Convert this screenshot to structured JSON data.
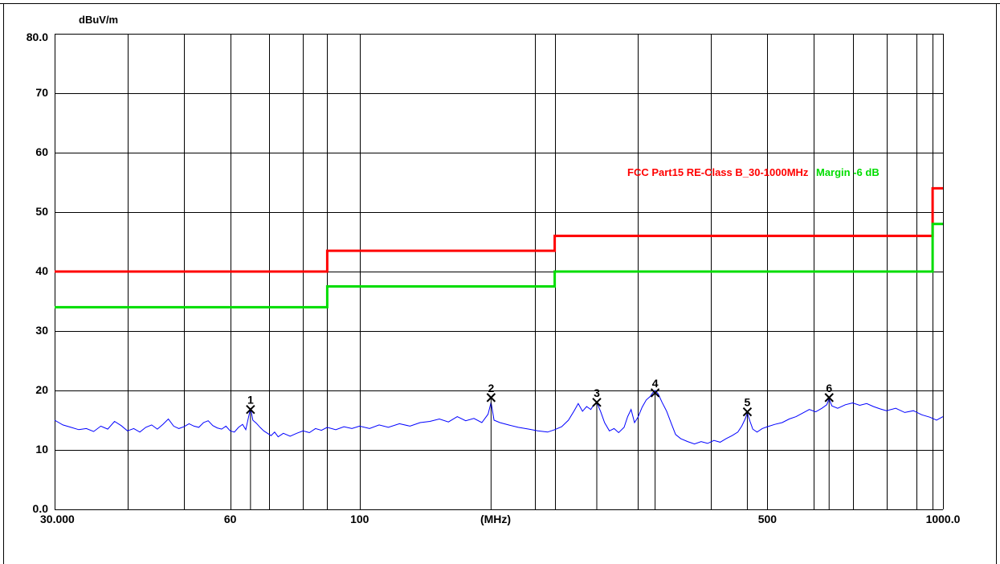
{
  "chart_data": {
    "type": "line",
    "ylabel": "dBuV/m",
    "xlabel": "(MHz)",
    "x_scale": "log",
    "xlim": [
      30,
      1000
    ],
    "ylim": [
      0,
      80
    ],
    "grid": true,
    "y_ticks": [
      {
        "value": 80,
        "label": "80.0"
      },
      {
        "value": 70,
        "label": "70"
      },
      {
        "value": 60,
        "label": "60"
      },
      {
        "value": 50,
        "label": "50"
      },
      {
        "value": 40,
        "label": "40"
      },
      {
        "value": 30,
        "label": "30"
      },
      {
        "value": 20,
        "label": "20"
      },
      {
        "value": 10,
        "label": "10"
      },
      {
        "value": 0,
        "label": "0.0"
      }
    ],
    "x_ticks": [
      {
        "value": 30,
        "label": "30.000"
      },
      {
        "value": 60,
        "label": "60"
      },
      {
        "value": 100,
        "label": "100"
      },
      {
        "value": 500,
        "label": "500"
      },
      {
        "value": 1000,
        "label": "1000.0"
      }
    ],
    "x_gridlines": [
      40,
      50,
      60,
      70,
      80,
      88,
      100,
      200,
      216,
      300,
      400,
      500,
      600,
      700,
      800,
      900,
      960,
      1000
    ],
    "legend": [
      {
        "text": "FCC Part15 RE-Class B_30-1000MHz",
        "color": "#ff0000"
      },
      {
        "text": "Margin -6 dB",
        "color": "#00dd00"
      }
    ],
    "series": [
      {
        "color": "#ff0000",
        "step": true,
        "points": [
          [
            30,
            40
          ],
          [
            88,
            40
          ],
          [
            88,
            43.5
          ],
          [
            216,
            43.5
          ],
          [
            216,
            46
          ],
          [
            960,
            46
          ],
          [
            960,
            54
          ],
          [
            1000,
            54
          ]
        ]
      },
      {
        "color": "#00dd00",
        "step": true,
        "points": [
          [
            30,
            34
          ],
          [
            88,
            34
          ],
          [
            88,
            37.5
          ],
          [
            216,
            37.5
          ],
          [
            216,
            40
          ],
          [
            960,
            40
          ],
          [
            960,
            48
          ],
          [
            1000,
            48
          ]
        ]
      },
      {
        "color": "#0000ff",
        "points": [
          [
            30,
            15.0
          ],
          [
            31,
            14.2
          ],
          [
            32,
            13.8
          ],
          [
            33,
            13.4
          ],
          [
            34,
            13.6
          ],
          [
            35,
            13.1
          ],
          [
            36,
            14.0
          ],
          [
            37,
            13.5
          ],
          [
            38,
            14.8
          ],
          [
            39,
            14.1
          ],
          [
            40,
            13.2
          ],
          [
            41,
            13.6
          ],
          [
            42,
            13.0
          ],
          [
            43,
            13.8
          ],
          [
            44,
            14.2
          ],
          [
            45,
            13.5
          ],
          [
            46,
            14.3
          ],
          [
            47,
            15.2
          ],
          [
            48,
            14.0
          ],
          [
            49,
            13.6
          ],
          [
            50,
            13.9
          ],
          [
            51,
            14.4
          ],
          [
            52,
            14.0
          ],
          [
            53,
            13.8
          ],
          [
            54,
            14.6
          ],
          [
            55,
            14.9
          ],
          [
            56,
            14.1
          ],
          [
            57,
            13.7
          ],
          [
            58,
            13.5
          ],
          [
            59,
            14.0
          ],
          [
            60,
            13.2
          ],
          [
            61,
            13.0
          ],
          [
            62,
            13.8
          ],
          [
            63,
            14.3
          ],
          [
            63.8,
            13.4
          ],
          [
            64.5,
            15.5
          ],
          [
            65,
            17.0
          ],
          [
            65.6,
            15.0
          ],
          [
            66.5,
            14.5
          ],
          [
            67.5,
            13.8
          ],
          [
            68.5,
            13.2
          ],
          [
            69.5,
            12.8
          ],
          [
            70.5,
            12.4
          ],
          [
            71.5,
            13.0
          ],
          [
            72.5,
            12.2
          ],
          [
            74,
            12.8
          ],
          [
            76,
            12.3
          ],
          [
            78,
            12.8
          ],
          [
            80,
            13.2
          ],
          [
            82,
            12.9
          ],
          [
            84,
            13.6
          ],
          [
            86,
            13.3
          ],
          [
            88,
            13.8
          ],
          [
            91,
            13.4
          ],
          [
            94,
            13.9
          ],
          [
            97,
            13.6
          ],
          [
            100,
            14.0
          ],
          [
            104,
            13.6
          ],
          [
            108,
            14.2
          ],
          [
            112,
            13.8
          ],
          [
            117,
            14.4
          ],
          [
            122,
            14.0
          ],
          [
            127,
            14.6
          ],
          [
            132,
            14.8
          ],
          [
            137,
            15.2
          ],
          [
            142,
            14.7
          ],
          [
            147,
            15.6
          ],
          [
            152,
            14.9
          ],
          [
            157,
            15.3
          ],
          [
            162,
            14.6
          ],
          [
            166,
            16.0
          ],
          [
            168,
            18.0
          ],
          [
            170,
            15.0
          ],
          [
            174,
            14.6
          ],
          [
            180,
            14.2
          ],
          [
            187,
            13.8
          ],
          [
            195,
            13.5
          ],
          [
            202,
            13.2
          ],
          [
            210,
            13.0
          ],
          [
            216,
            13.4
          ],
          [
            222,
            13.9
          ],
          [
            228,
            15.0
          ],
          [
            233,
            16.5
          ],
          [
            237,
            17.8
          ],
          [
            241,
            16.5
          ],
          [
            245,
            17.3
          ],
          [
            249,
            16.8
          ],
          [
            252,
            17.6
          ],
          [
            255,
            18.0
          ],
          [
            259,
            16.4
          ],
          [
            263,
            14.6
          ],
          [
            268,
            13.2
          ],
          [
            273,
            13.6
          ],
          [
            278,
            12.9
          ],
          [
            284,
            13.8
          ],
          [
            288,
            15.6
          ],
          [
            292,
            16.8
          ],
          [
            296,
            14.6
          ],
          [
            300,
            15.5
          ],
          [
            305,
            17.2
          ],
          [
            310,
            18.4
          ],
          [
            315,
            19.0
          ],
          [
            318,
            19.6
          ],
          [
            321,
            20.0
          ],
          [
            325,
            19.4
          ],
          [
            330,
            18.0
          ],
          [
            336,
            16.5
          ],
          [
            342,
            14.5
          ],
          [
            348,
            12.6
          ],
          [
            355,
            11.9
          ],
          [
            365,
            11.4
          ],
          [
            375,
            11.0
          ],
          [
            385,
            11.4
          ],
          [
            395,
            11.1
          ],
          [
            405,
            11.6
          ],
          [
            415,
            11.3
          ],
          [
            425,
            11.9
          ],
          [
            435,
            12.4
          ],
          [
            445,
            13.0
          ],
          [
            452,
            14.0
          ],
          [
            458,
            15.2
          ],
          [
            462,
            16.2
          ],
          [
            467,
            14.8
          ],
          [
            472,
            13.5
          ],
          [
            480,
            13.0
          ],
          [
            490,
            13.6
          ],
          [
            500,
            13.9
          ],
          [
            515,
            14.3
          ],
          [
            530,
            14.6
          ],
          [
            545,
            15.2
          ],
          [
            560,
            15.6
          ],
          [
            575,
            16.2
          ],
          [
            590,
            16.8
          ],
          [
            605,
            16.4
          ],
          [
            620,
            17.0
          ],
          [
            632,
            17.6
          ],
          [
            638,
            18.6
          ],
          [
            645,
            17.4
          ],
          [
            660,
            17.0
          ],
          [
            680,
            17.6
          ],
          [
            700,
            17.9
          ],
          [
            720,
            17.5
          ],
          [
            740,
            17.8
          ],
          [
            760,
            17.3
          ],
          [
            780,
            16.9
          ],
          [
            800,
            16.6
          ],
          [
            830,
            17.0
          ],
          [
            860,
            16.3
          ],
          [
            890,
            16.6
          ],
          [
            920,
            15.9
          ],
          [
            950,
            15.5
          ],
          [
            975,
            15.0
          ],
          [
            1000,
            15.6
          ]
        ]
      }
    ],
    "markers": [
      {
        "label": "1",
        "x": 65,
        "y": 16.8
      },
      {
        "label": "2",
        "x": 168,
        "y": 18.8
      },
      {
        "label": "3",
        "x": 255,
        "y": 18.0
      },
      {
        "label": "4",
        "x": 321,
        "y": 19.6
      },
      {
        "label": "5",
        "x": 462,
        "y": 16.4
      },
      {
        "label": "6",
        "x": 638,
        "y": 18.8
      }
    ]
  }
}
